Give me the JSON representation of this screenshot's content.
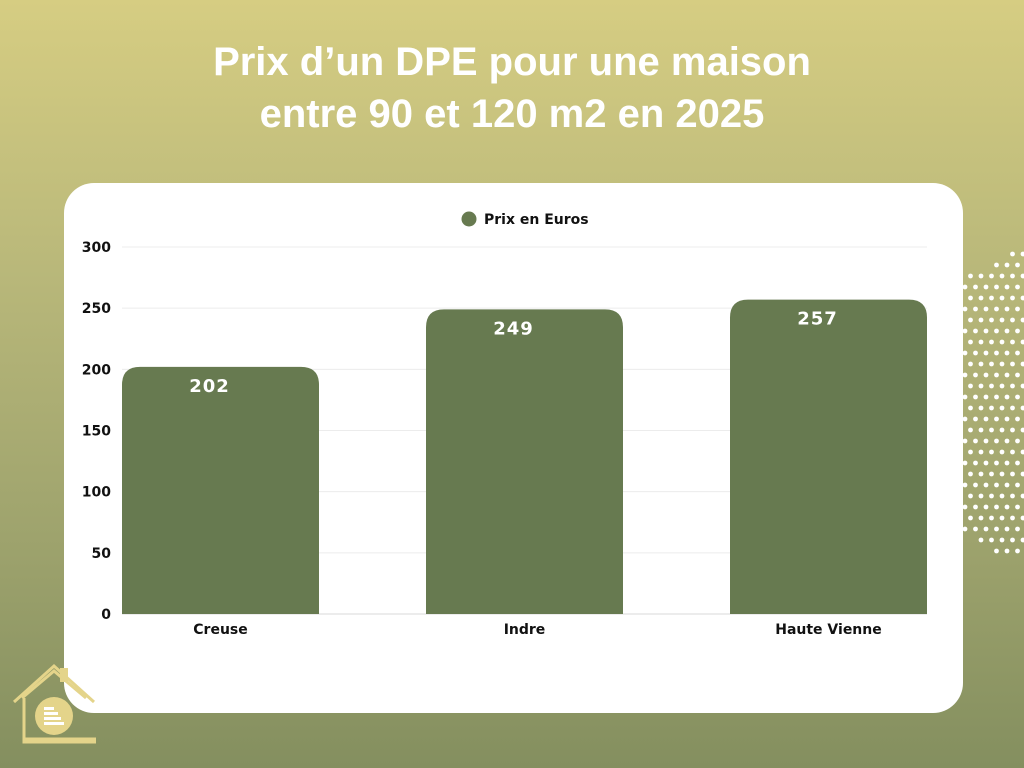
{
  "title_line1": "Prix d’un DPE pour une maison",
  "title_line2": "entre 90 et 120 m2 en 2025",
  "colors": {
    "bar": "#677a50",
    "background_top": "#d6cd82",
    "background_bottom": "#848f5f",
    "logo": "#e4d48a"
  },
  "icons": {
    "logo": "house-logo-icon",
    "decoration": "dot-pattern"
  },
  "chart_data": {
    "type": "bar",
    "categories": [
      "Creuse",
      "Indre",
      "Haute Vienne"
    ],
    "series": [
      {
        "name": "Prix en Euros",
        "values": [
          202,
          249,
          257
        ]
      }
    ],
    "data_labels": [
      "202",
      "249",
      "257"
    ],
    "ylim": [
      0,
      300
    ],
    "yticks": [
      0,
      50,
      100,
      150,
      200,
      250,
      300
    ],
    "grid": true,
    "legend": "top-center"
  }
}
